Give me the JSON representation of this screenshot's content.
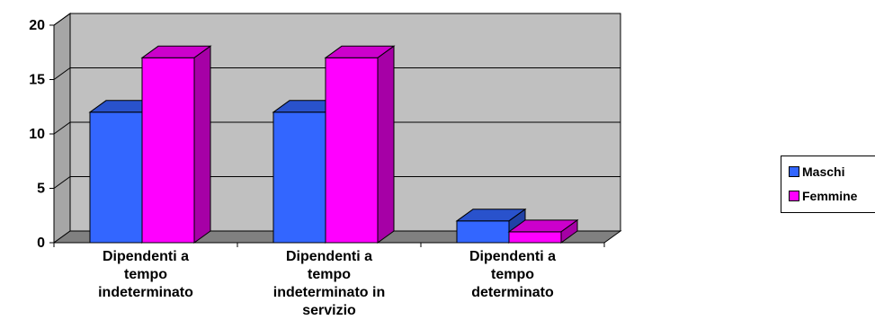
{
  "chart_data": {
    "type": "bar",
    "categories": [
      [
        "Dipendenti a",
        "tempo",
        "indeterminato"
      ],
      [
        "Dipendenti a",
        "tempo",
        "indeterminato in",
        "servizio"
      ],
      [
        "Dipendenti a",
        "tempo",
        "determinato"
      ]
    ],
    "series": [
      {
        "name": "Maschi",
        "values": [
          12,
          12,
          2
        ],
        "color": "#3366ff"
      },
      {
        "name": "Femmine",
        "values": [
          17,
          17,
          1
        ],
        "color": "#ff00ff"
      }
    ],
    "yticks": [
      "0",
      "5",
      "10",
      "15",
      "20"
    ],
    "ylim": [
      0,
      20
    ],
    "grid": true,
    "legend_position": "right",
    "plot_color": "#c0c0c0"
  }
}
